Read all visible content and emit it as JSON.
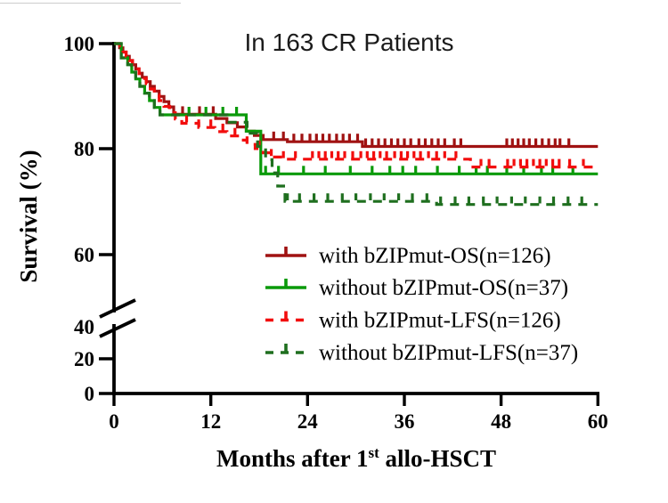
{
  "title": "In 163 CR Patients",
  "axes": {
    "y_label": "Survival (%)",
    "x_label_pre": "Months after 1",
    "x_label_sup": "st",
    "x_label_post": " allo-HSCT",
    "y_tick_labels": [
      "100",
      "80",
      "60",
      "40",
      "20",
      "0"
    ],
    "x_tick_labels": [
      "0",
      "12",
      "24",
      "36",
      "48",
      "60"
    ]
  },
  "chart_data": {
    "type": "line",
    "subtype": "kaplan-meier-step",
    "title": "In 163 CR Patients",
    "xlabel": "Months after 1st allo-HSCT",
    "ylabel": "Survival (%)",
    "xlim": [
      0,
      60
    ],
    "x_ticks": [
      0,
      12,
      24,
      36,
      48,
      60
    ],
    "y_ticks": [
      0,
      20,
      40,
      60,
      80,
      100
    ],
    "axis_break_between": [
      40,
      60
    ],
    "grid": false,
    "legend_position": "inside-lower-right",
    "series": [
      {
        "id": "with-bzipmut-os",
        "name": "with bZIPmut-OS(n=126)",
        "color": "#A01212",
        "line": "solid",
        "steps": [
          [
            0,
            100
          ],
          [
            0.7,
            99.2
          ],
          [
            1.1,
            98.4
          ],
          [
            1.5,
            97.6
          ],
          [
            1.9,
            96.8
          ],
          [
            2.3,
            96
          ],
          [
            2.7,
            95.2
          ],
          [
            3.1,
            94.4
          ],
          [
            3.5,
            93.6
          ],
          [
            4,
            92.8
          ],
          [
            4.5,
            91.9
          ],
          [
            5,
            91
          ],
          [
            5.6,
            90
          ],
          [
            6.2,
            89
          ],
          [
            6.8,
            88
          ],
          [
            7.4,
            86.6
          ],
          [
            12.6,
            85.8
          ],
          [
            14,
            85
          ],
          [
            15.3,
            84.2
          ],
          [
            16.4,
            83.4
          ],
          [
            17.4,
            82.6
          ],
          [
            18.5,
            81.8
          ],
          [
            21.5,
            81.4
          ],
          [
            30.8,
            80.5
          ],
          [
            60,
            80.5
          ]
        ],
        "censor_months": [
          8.5,
          10.6,
          12.3,
          19.8,
          21,
          22.3,
          23.3,
          24.3,
          25.1,
          25.9,
          26.7,
          27.6,
          28.4,
          29.2,
          30.2,
          31.2,
          32,
          32.8,
          33.6,
          34.4,
          35.2,
          36,
          36.8,
          37.8,
          38.6,
          39.4,
          40.2,
          41,
          42.2,
          43,
          48.7,
          49.4,
          50.1,
          50.8,
          51.5,
          52.3,
          53.1,
          53.9,
          54.7,
          55.3,
          56.4
        ]
      },
      {
        "id": "without-bzipmut-os",
        "name": "without bZIPmut-OS(n=37)",
        "color": "#0A9A0A",
        "line": "solid",
        "steps": [
          [
            0,
            100
          ],
          [
            0.9,
            97.3
          ],
          [
            1.7,
            96
          ],
          [
            2.2,
            94.6
          ],
          [
            2.7,
            93.3
          ],
          [
            3.2,
            91.9
          ],
          [
            3.8,
            90.6
          ],
          [
            4.4,
            89.2
          ],
          [
            5,
            87.9
          ],
          [
            5.7,
            86.5
          ],
          [
            16.4,
            83.4
          ],
          [
            18.2,
            75.3
          ],
          [
            60,
            75.3
          ]
        ],
        "censor_months": [
          9.3,
          11.4,
          13.5,
          15.2,
          18.8,
          20.4,
          23.5,
          26.2,
          29.3,
          32,
          34.2,
          35.8,
          37.4,
          40.1,
          42.8,
          44.9,
          46.3,
          48.7,
          50.8,
          53,
          54.4,
          56.9
        ]
      },
      {
        "id": "with-bzipmut-lfs",
        "name": "with bZIPmut-LFS(n=126)",
        "color": "#F20D0D",
        "line": "dashed",
        "steps": [
          [
            0,
            100
          ],
          [
            0.7,
            99.2
          ],
          [
            1.1,
            98.4
          ],
          [
            1.5,
            97.6
          ],
          [
            1.9,
            96.8
          ],
          [
            2.3,
            96
          ],
          [
            2.7,
            95.2
          ],
          [
            3.1,
            94.3
          ],
          [
            3.5,
            93.4
          ],
          [
            4,
            92.4
          ],
          [
            4.5,
            91.4
          ],
          [
            5,
            90.3
          ],
          [
            5.6,
            89.2
          ],
          [
            6.2,
            88.1
          ],
          [
            6.9,
            86.9
          ],
          [
            7.6,
            85.7
          ],
          [
            8.4,
            84.9
          ],
          [
            10.5,
            84.1
          ],
          [
            12.5,
            83.3
          ],
          [
            14,
            82.5
          ],
          [
            15.5,
            81.7
          ],
          [
            16.5,
            80.9
          ],
          [
            17.5,
            80.1
          ],
          [
            18.5,
            79.3
          ],
          [
            19.5,
            78.5
          ],
          [
            21,
            78.1
          ],
          [
            44.2,
            76.6
          ],
          [
            59.5,
            76.6
          ]
        ],
        "censor_months": [
          9,
          10.5,
          12,
          13.5,
          15,
          16.5,
          18,
          19.5,
          21,
          22.5,
          24.6,
          25.4,
          26.2,
          27,
          27.8,
          28.6,
          29.6,
          30.6,
          31.4,
          32.2,
          33,
          33.8,
          34.8,
          35.6,
          36.4,
          37.2,
          38,
          39,
          40,
          41,
          42.4,
          45.5,
          46.5,
          48.8,
          49.6,
          50.4,
          51.2,
          52,
          52.8,
          53.6,
          54.4,
          55.2,
          56.5,
          58.2
        ]
      },
      {
        "id": "without-bzipmut-lfs",
        "name": "without bZIPmut-LFS(n=37)",
        "color": "#1F6F1F",
        "line": "dashed",
        "steps": [
          [
            0,
            100
          ],
          [
            0.9,
            97.3
          ],
          [
            1.7,
            96
          ],
          [
            2.2,
            94.6
          ],
          [
            2.7,
            93.3
          ],
          [
            3.2,
            91.9
          ],
          [
            3.8,
            90.6
          ],
          [
            4.4,
            89.2
          ],
          [
            5,
            87.9
          ],
          [
            5.7,
            86.5
          ],
          [
            14,
            85.1
          ],
          [
            16.5,
            83
          ],
          [
            17.8,
            80.5
          ],
          [
            18.8,
            78
          ],
          [
            19.6,
            75.5
          ],
          [
            20.3,
            73
          ],
          [
            21.2,
            70.1
          ],
          [
            40,
            69.5
          ],
          [
            60,
            69.5
          ]
        ],
        "censor_months": [
          21.5,
          23,
          24.8,
          26.5,
          28.3,
          30,
          31.8,
          33.5,
          35.3,
          37,
          38.8,
          40.5,
          42.3,
          44,
          45.8,
          47.5,
          49.3,
          51,
          52.8,
          54.5,
          56.3,
          58
        ]
      }
    ]
  }
}
